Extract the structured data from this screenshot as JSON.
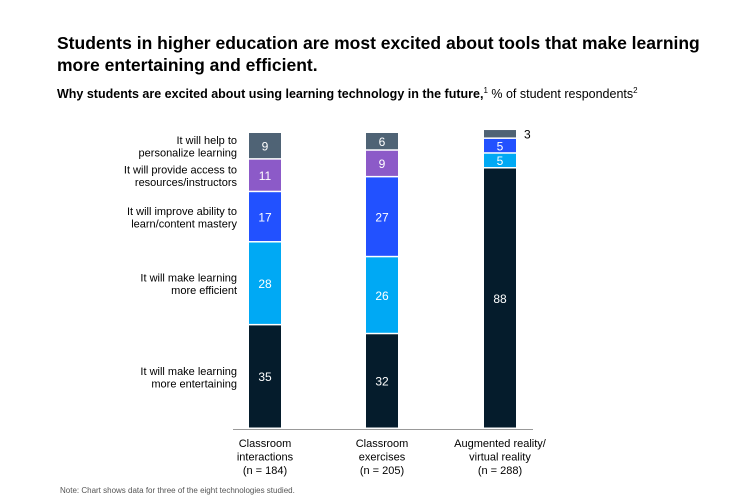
{
  "title": "Students in higher education are most excited about tools that make learning more entertaining and efficient.",
  "subtitle_bold": "Why students are excited about using learning technology in the future,",
  "subtitle_bold_sup": "1",
  "subtitle_rest": " % of student respondents",
  "subtitle_rest_sup": "2",
  "footnote": "Note: Chart shows data for three of the eight technologies studied.",
  "chart_data": {
    "type": "bar",
    "stacked": true,
    "categories": [
      [
        "Classroom",
        "interactions",
        "(n = 184)"
      ],
      [
        "Classroom",
        "exercises",
        "(n = 205)"
      ],
      [
        "Augmented reality/",
        "virtual reality",
        "(n = 288)"
      ]
    ],
    "series": [
      {
        "name": "It will make learning more entertaining",
        "label_lines": [
          "It will make learning",
          "more entertaining"
        ],
        "color": "#051c2c",
        "values": [
          35,
          32,
          88
        ]
      },
      {
        "name": "It will make learning more efficient",
        "label_lines": [
          "It will make learning",
          "more efficient"
        ],
        "color": "#00a9f4",
        "values": [
          28,
          26,
          5
        ]
      },
      {
        "name": "It will improve ability to learn/content mastery",
        "label_lines": [
          "It will improve ability to",
          "learn/content mastery"
        ],
        "color": "#2251ff",
        "values": [
          17,
          27,
          5
        ]
      },
      {
        "name": "It will provide access to resources/instructors",
        "label_lines": [
          "It will provide access to",
          "resources/instructors"
        ],
        "color": "#8c5ac8",
        "values": [
          11,
          9,
          null
        ]
      },
      {
        "name": "It will help to personalize learning",
        "label_lines": [
          "It will help to",
          "personalize learning"
        ],
        "color": "#4f6375",
        "values": [
          9,
          6,
          3
        ]
      }
    ],
    "legend_position": "left",
    "ylim": [
      0,
      100
    ],
    "grid": false
  }
}
